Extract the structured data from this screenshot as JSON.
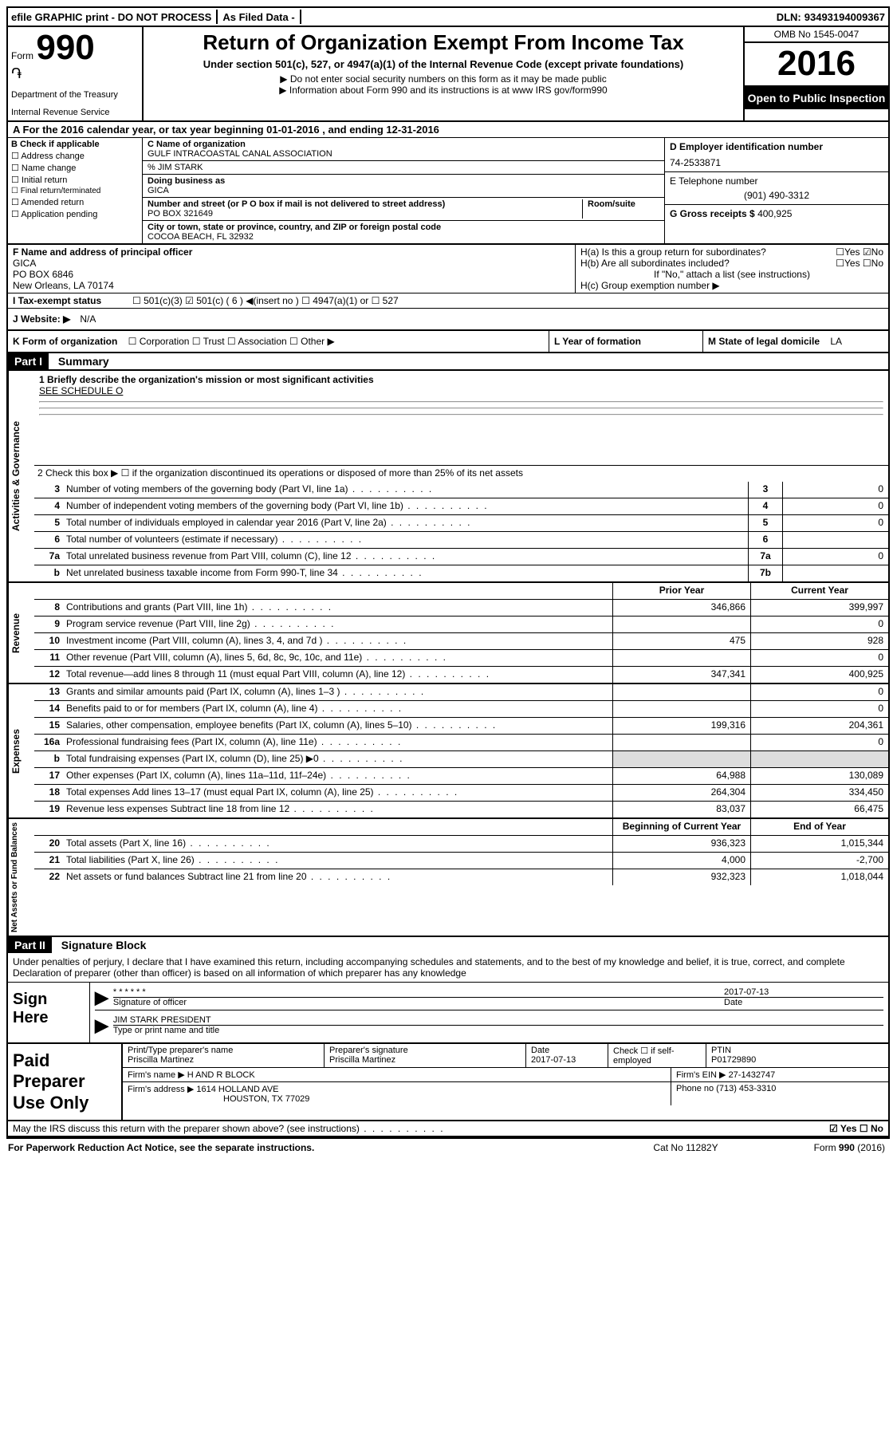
{
  "meta": {
    "efile_line": "efile GRAPHIC print - DO NOT PROCESS",
    "as_filed": "As Filed Data -",
    "dln_label": "DLN:",
    "dln": "93493194009367",
    "omb": "OMB No 1545-0047",
    "year": "2016",
    "open_public": "Open to Public Inspection",
    "form_label": "Form",
    "form_num": "990",
    "dept1": "Department of the Treasury",
    "dept2": "Internal Revenue Service",
    "title": "Return of Organization Exempt From Income Tax",
    "subtitle": "Under section 501(c), 527, or 4947(a)(1) of the Internal Revenue Code (except private foundations)",
    "note1": "▶ Do not enter social security numbers on this form as it may be made public",
    "note2": "▶ Information about Form 990 and its instructions is at ",
    "note2_link": "www IRS gov/form990"
  },
  "line_a": "A  For the 2016 calendar year, or tax year beginning 01-01-2016   , and ending 12-31-2016",
  "section_b": {
    "label": "B Check if applicable",
    "items": [
      "Address change",
      "Name change",
      "Initial return",
      "Final return/terminated",
      "Amended return",
      "Application pending"
    ]
  },
  "section_c": {
    "name_label": "C Name of organization",
    "name": "GULF INTRACOASTAL CANAL ASSOCIATION",
    "care_label": "% JIM STARK",
    "dba_label": "Doing business as",
    "dba": "GICA",
    "street_label": "Number and street (or P O  box if mail is not delivered to street address)",
    "room_label": "Room/suite",
    "street": "PO BOX 321649",
    "city_label": "City or town, state or province, country, and ZIP or foreign postal code",
    "city": "COCOA BEACH, FL  32932"
  },
  "section_d": {
    "label": "D Employer identification number",
    "value": "74-2533871"
  },
  "section_e": {
    "label": "E Telephone number",
    "value": "(901) 490-3312"
  },
  "section_g": {
    "label": "G Gross receipts $",
    "value": "400,925"
  },
  "section_f": {
    "label": "F  Name and address of principal officer",
    "name": "GICA",
    "line2": "PO BOX 6846",
    "line3": "New Orleans, LA  70174"
  },
  "section_h": {
    "ha": "H(a)  Is this a group return for subordinates?",
    "ha_answer_yes": "☐Yes",
    "ha_answer_no": "☑No",
    "hb": "H(b) Are all subordinates included?",
    "hb_answer": "☐Yes  ☐No",
    "hb_note": "If \"No,\" attach a list  (see instructions)",
    "hc": "H(c) Group exemption number ▶"
  },
  "row_i": {
    "label": "I  Tax-exempt status",
    "opts": "☐ 501(c)(3)   ☑ 501(c) ( 6 ) ◀(insert no )   ☐ 4947(a)(1) or   ☐ 527"
  },
  "row_j": {
    "label": "J  Website: ▶",
    "value": "N/A"
  },
  "row_k": {
    "label": "K Form of organization",
    "opts": "☐ Corporation  ☐ Trust  ☐ Association  ☐ Other ▶",
    "l_label": "L Year of formation",
    "m_label": "M State of legal domicile",
    "m_value": "LA"
  },
  "part1": {
    "header": "Part I",
    "title": "Summary"
  },
  "activities": {
    "side": "Activities & Governance",
    "line1_label": "1 Briefly describe the organization's mission or most significant activities",
    "line1_value": "SEE SCHEDULE O",
    "line2": "2  Check this box ▶ ☐ if the organization discontinued its operations or disposed of more than 25% of its net assets",
    "rows": [
      {
        "n": "3",
        "t": "Number of voting members of the governing body (Part VI, line 1a)",
        "box": "3",
        "v": "0"
      },
      {
        "n": "4",
        "t": "Number of independent voting members of the governing body (Part VI, line 1b)",
        "box": "4",
        "v": "0"
      },
      {
        "n": "5",
        "t": "Total number of individuals employed in calendar year 2016 (Part V, line 2a)",
        "box": "5",
        "v": "0"
      },
      {
        "n": "6",
        "t": "Total number of volunteers (estimate if necessary)",
        "box": "6",
        "v": ""
      },
      {
        "n": "7a",
        "t": "Total unrelated business revenue from Part VIII, column (C), line 12",
        "box": "7a",
        "v": "0"
      },
      {
        "n": "b",
        "t": "Net unrelated business taxable income from Form 990-T, line 34",
        "box": "7b",
        "v": ""
      }
    ]
  },
  "revenue": {
    "side": "Revenue",
    "header_prior": "Prior Year",
    "header_current": "Current Year",
    "rows": [
      {
        "n": "8",
        "t": "Contributions and grants (Part VIII, line 1h)",
        "p": "346,866",
        "c": "399,997"
      },
      {
        "n": "9",
        "t": "Program service revenue (Part VIII, line 2g)",
        "p": "",
        "c": "0"
      },
      {
        "n": "10",
        "t": "Investment income (Part VIII, column (A), lines 3, 4, and 7d )",
        "p": "475",
        "c": "928"
      },
      {
        "n": "11",
        "t": "Other revenue (Part VIII, column (A), lines 5, 6d, 8c, 9c, 10c, and 11e)",
        "p": "",
        "c": "0"
      },
      {
        "n": "12",
        "t": "Total revenue—add lines 8 through 11 (must equal Part VIII, column (A), line 12)",
        "p": "347,341",
        "c": "400,925"
      }
    ]
  },
  "expenses": {
    "side": "Expenses",
    "rows": [
      {
        "n": "13",
        "t": "Grants and similar amounts paid (Part IX, column (A), lines 1–3 )",
        "p": "",
        "c": "0"
      },
      {
        "n": "14",
        "t": "Benefits paid to or for members (Part IX, column (A), line 4)",
        "p": "",
        "c": "0"
      },
      {
        "n": "15",
        "t": "Salaries, other compensation, employee benefits (Part IX, column (A), lines 5–10)",
        "p": "199,316",
        "c": "204,361"
      },
      {
        "n": "16a",
        "t": "Professional fundraising fees (Part IX, column (A), line 11e)",
        "p": "",
        "c": "0"
      },
      {
        "n": "b",
        "t": "Total fundraising expenses (Part IX, column (D), line 25) ▶0",
        "p": "SHADE",
        "c": "SHADE"
      },
      {
        "n": "17",
        "t": "Other expenses (Part IX, column (A), lines 11a–11d, 11f–24e)",
        "p": "64,988",
        "c": "130,089"
      },
      {
        "n": "18",
        "t": "Total expenses  Add lines 13–17 (must equal Part IX, column (A), line 25)",
        "p": "264,304",
        "c": "334,450"
      },
      {
        "n": "19",
        "t": "Revenue less expenses  Subtract line 18 from line 12",
        "p": "83,037",
        "c": "66,475"
      }
    ]
  },
  "netassets": {
    "side": "Net Assets or Fund Balances",
    "header_begin": "Beginning of Current Year",
    "header_end": "End of Year",
    "rows": [
      {
        "n": "20",
        "t": "Total assets (Part X, line 16)",
        "p": "936,323",
        "c": "1,015,344"
      },
      {
        "n": "21",
        "t": "Total liabilities (Part X, line 26)",
        "p": "4,000",
        "c": "-2,700"
      },
      {
        "n": "22",
        "t": "Net assets or fund balances  Subtract line 21 from line 20",
        "p": "932,323",
        "c": "1,018,044"
      }
    ]
  },
  "part2": {
    "header": "Part II",
    "title": "Signature Block",
    "perjury": "Under penalties of perjury, I declare that I have examined this return, including accompanying schedules and statements, and to the best of my knowledge and belief, it is true, correct, and complete  Declaration of preparer (other than officer) is based on all information of which preparer has any knowledge"
  },
  "sign": {
    "label": "Sign Here",
    "stars": "******",
    "sig_of_officer": "Signature of officer",
    "date": "2017-07-13",
    "date_label": "Date",
    "name_title": "JIM STARK PRESIDENT",
    "type_label": "Type or print name and title"
  },
  "prep": {
    "label": "Paid Preparer Use Only",
    "name_label": "Print/Type preparer's name",
    "name": "Priscilla Martinez",
    "sig_label": "Preparer's signature",
    "sig": "Priscilla Martinez",
    "date_label": "Date",
    "date": "2017-07-13",
    "check_label": "Check ☐ if self-employed",
    "ptin_label": "PTIN",
    "ptin": "P01729890",
    "firm_name_label": "Firm's name   ▶",
    "firm_name": "H AND R BLOCK",
    "firm_ein_label": "Firm's EIN ▶",
    "firm_ein": "27-1432747",
    "firm_addr_label": "Firm's address ▶",
    "firm_addr": "1614 HOLLAND AVE",
    "firm_city": "HOUSTON, TX  77029",
    "phone_label": "Phone no",
    "phone": "(713) 453-3310"
  },
  "discuss": {
    "text": "May the IRS discuss this return with the preparer shown above? (see instructions)",
    "answer": "☑ Yes  ☐ No"
  },
  "footer": {
    "left": "For Paperwork Reduction Act Notice, see the separate instructions.",
    "mid": "Cat  No  11282Y",
    "right": "Form 990 (2016)"
  }
}
